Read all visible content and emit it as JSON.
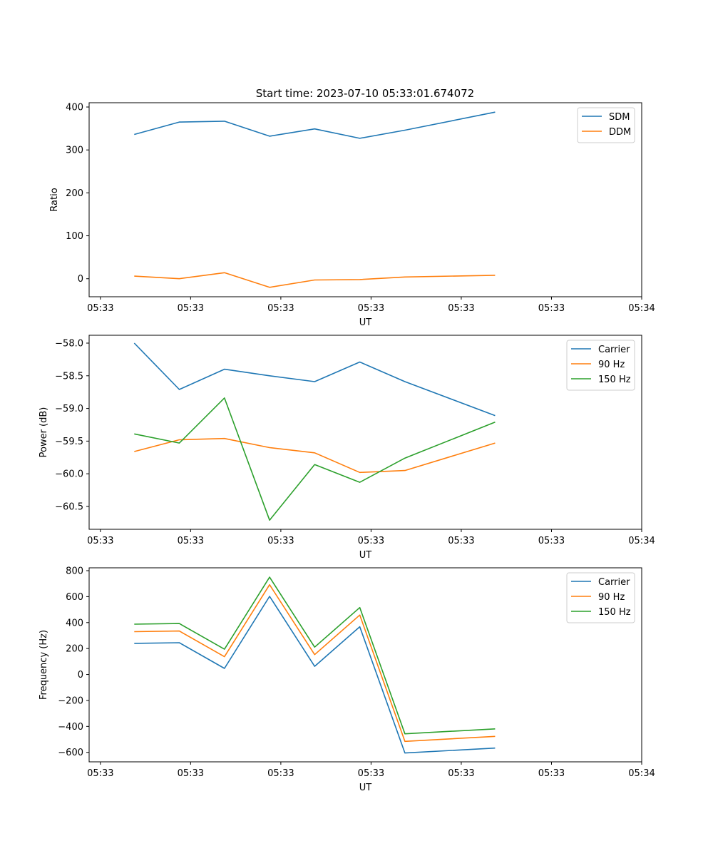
{
  "figure_title": "Start time: 2023-07-10 05:33:01.674072",
  "chart_data": [
    {
      "type": "line",
      "title": "Start time: 2023-07-10 05:33:01.674072",
      "xlabel": "UT",
      "ylabel": "Ratio",
      "x_tick_labels": [
        "05:33",
        "05:33",
        "05:33",
        "05:33",
        "05:33",
        "05:33",
        "05:34"
      ],
      "x": [
        0.5,
        1,
        1.5,
        2,
        2.5,
        3,
        3.5,
        4.5
      ],
      "xlim": [
        0,
        6.125
      ],
      "ylim": [
        -42,
        410
      ],
      "yticks": [
        0,
        100,
        200,
        300,
        400
      ],
      "y_tick_labels": [
        "0",
        "100",
        "200",
        "300",
        "400"
      ],
      "legend_position": "upper right",
      "series": [
        {
          "name": "SDM",
          "color": "#1f77b4",
          "values": [
            336,
            365,
            367,
            332,
            349,
            327,
            346,
            388
          ]
        },
        {
          "name": "DDM",
          "color": "#ff7f0e",
          "values": [
            6,
            0,
            14,
            -20,
            -3,
            -2,
            4,
            8
          ]
        }
      ]
    },
    {
      "type": "line",
      "title": "",
      "xlabel": "UT",
      "ylabel": "Power (dB)",
      "x_tick_labels": [
        "05:33",
        "05:33",
        "05:33",
        "05:33",
        "05:33",
        "05:33",
        "05:34"
      ],
      "x": [
        0.5,
        1,
        1.5,
        2,
        2.5,
        3,
        3.5,
        4.5
      ],
      "xlim": [
        0,
        6.125
      ],
      "ylim": [
        -60.85,
        -57.88
      ],
      "yticks": [
        -58.0,
        -58.5,
        -59.0,
        -59.5,
        -60.0,
        -60.5
      ],
      "y_tick_labels": [
        "−58.0",
        "−58.5",
        "−59.0",
        "−59.5",
        "−60.0",
        "−60.5"
      ],
      "legend_position": "upper right",
      "series": [
        {
          "name": "Carrier",
          "color": "#1f77b4",
          "values": [
            -58.0,
            -58.71,
            -58.4,
            -58.5,
            -58.59,
            -58.29,
            -58.59,
            -59.11
          ]
        },
        {
          "name": "90 Hz",
          "color": "#ff7f0e",
          "values": [
            -59.66,
            -59.48,
            -59.46,
            -59.6,
            -59.68,
            -59.98,
            -59.95,
            -59.53
          ]
        },
        {
          "name": "150 Hz",
          "color": "#2ca02c",
          "values": [
            -59.39,
            -59.53,
            -58.84,
            -60.71,
            -59.86,
            -60.13,
            -59.76,
            -59.21
          ]
        }
      ]
    },
    {
      "type": "line",
      "title": "",
      "xlabel": "UT",
      "ylabel": "Frequency (Hz)",
      "x_tick_labels": [
        "05:33",
        "05:33",
        "05:33",
        "05:33",
        "05:33",
        "05:33",
        "05:34"
      ],
      "x": [
        0.5,
        1,
        1.5,
        2,
        2.5,
        3,
        3.5,
        4.5
      ],
      "xlim": [
        0,
        6.125
      ],
      "ylim": [
        -673,
        822
      ],
      "yticks": [
        800,
        600,
        400,
        200,
        0,
        -200,
        -400,
        -600
      ],
      "y_tick_labels": [
        "800",
        "600",
        "400",
        "200",
        "0",
        "−200",
        "−400",
        "−600"
      ],
      "legend_position": "upper right",
      "series": [
        {
          "name": "Carrier",
          "color": "#1f77b4",
          "values": [
            240,
            245,
            47,
            602,
            63,
            368,
            -605,
            -567
          ]
        },
        {
          "name": "90 Hz",
          "color": "#ff7f0e",
          "values": [
            330,
            335,
            137,
            692,
            153,
            458,
            -515,
            -477
          ]
        },
        {
          "name": "150 Hz",
          "color": "#2ca02c",
          "values": [
            388,
            393,
            195,
            750,
            211,
            516,
            -457,
            -419
          ]
        }
      ]
    }
  ]
}
